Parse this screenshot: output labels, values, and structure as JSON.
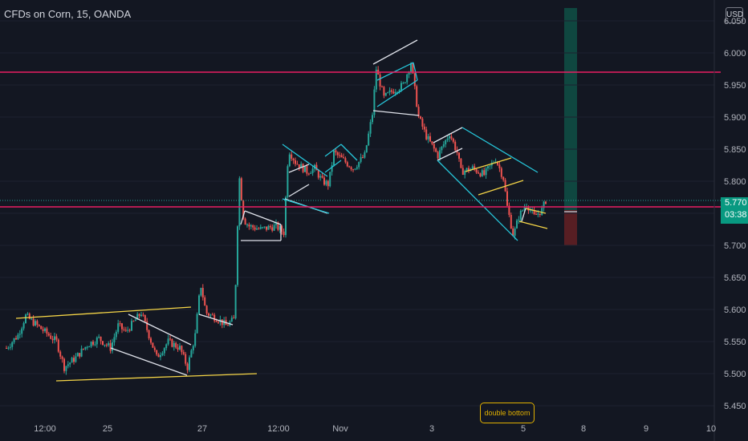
{
  "header": {
    "symbol_label": "CFDs on Corn, 15, OANDA",
    "currency_button": "USD"
  },
  "price_tag": {
    "price": "5.770",
    "countdown": "03:38"
  },
  "annotation": {
    "text": "double bottom"
  },
  "colors": {
    "background": "#131722",
    "up": "#26a69a",
    "down": "#ef5350",
    "resistance": "#e91e63",
    "channel_yellow": "#f5d547",
    "channel_cyan": "#26c6da",
    "flag_white": "#e0e3eb",
    "target_zone": "#0f4d44",
    "stop_zone": "#5b1f24"
  },
  "chart_data": {
    "type": "candlestick",
    "title": "CFDs on Corn, 15, OANDA",
    "y_ticks": [
      "6.050",
      "6.000",
      "5.950",
      "5.900",
      "5.850",
      "5.800",
      "5.750",
      "5.700",
      "5.650",
      "5.600",
      "5.550",
      "5.500",
      "5.450"
    ],
    "ylim": [
      5.45,
      6.06
    ],
    "x_ticks": [
      "12:00",
      "25",
      "27",
      "12:00",
      "Nov",
      "3",
      "5",
      "8",
      "9",
      "10"
    ],
    "last_price": 5.77,
    "horizontal_lines": [
      5.97,
      5.76
    ],
    "path": [
      {
        "t": 0,
        "p": 5.54
      },
      {
        "t": 1.5,
        "p": 5.56
      },
      {
        "t": 2.5,
        "p": 5.59
      },
      {
        "t": 4,
        "p": 5.575
      },
      {
        "t": 6.5,
        "p": 5.55
      },
      {
        "t": 7.5,
        "p": 5.51
      },
      {
        "t": 9,
        "p": 5.525
      },
      {
        "t": 10.5,
        "p": 5.545
      },
      {
        "t": 12,
        "p": 5.555
      },
      {
        "t": 13.5,
        "p": 5.54
      },
      {
        "t": 14.5,
        "p": 5.575
      },
      {
        "t": 15.5,
        "p": 5.565
      },
      {
        "t": 17.5,
        "p": 5.595
      },
      {
        "t": 18.5,
        "p": 5.56
      },
      {
        "t": 19.5,
        "p": 5.525
      },
      {
        "t": 21,
        "p": 5.55
      },
      {
        "t": 22.5,
        "p": 5.54
      },
      {
        "t": 23.5,
        "p": 5.51
      },
      {
        "t": 24.5,
        "p": 5.56
      },
      {
        "t": 25.2,
        "p": 5.64
      },
      {
        "t": 25.9,
        "p": 5.595
      },
      {
        "t": 27.5,
        "p": 5.585
      },
      {
        "t": 28.5,
        "p": 5.575
      },
      {
        "t": 29.6,
        "p": 5.585
      },
      {
        "t": 30.2,
        "p": 5.81
      },
      {
        "t": 30.8,
        "p": 5.74
      },
      {
        "t": 31.5,
        "p": 5.73
      },
      {
        "t": 33,
        "p": 5.725
      },
      {
        "t": 35,
        "p": 5.73
      },
      {
        "t": 36,
        "p": 5.72
      },
      {
        "t": 36.6,
        "p": 5.85
      },
      {
        "t": 37.5,
        "p": 5.83
      },
      {
        "t": 39,
        "p": 5.815
      },
      {
        "t": 40,
        "p": 5.82
      },
      {
        "t": 41,
        "p": 5.8
      },
      {
        "t": 41.8,
        "p": 5.795
      },
      {
        "t": 42.5,
        "p": 5.845
      },
      {
        "t": 43.5,
        "p": 5.835
      },
      {
        "t": 45,
        "p": 5.82
      },
      {
        "t": 46.5,
        "p": 5.84
      },
      {
        "t": 47.5,
        "p": 5.905
      },
      {
        "t": 48,
        "p": 5.975
      },
      {
        "t": 49,
        "p": 5.93
      },
      {
        "t": 50,
        "p": 5.94
      },
      {
        "t": 51.5,
        "p": 5.95
      },
      {
        "t": 52.5,
        "p": 5.985
      },
      {
        "t": 53.5,
        "p": 5.9
      },
      {
        "t": 54.5,
        "p": 5.87
      },
      {
        "t": 56,
        "p": 5.84
      },
      {
        "t": 57.5,
        "p": 5.875
      },
      {
        "t": 58.5,
        "p": 5.845
      },
      {
        "t": 59,
        "p": 5.815
      },
      {
        "t": 60.5,
        "p": 5.82
      },
      {
        "t": 62,
        "p": 5.81
      },
      {
        "t": 63.5,
        "p": 5.835
      },
      {
        "t": 64.5,
        "p": 5.805
      },
      {
        "t": 65,
        "p": 5.76
      },
      {
        "t": 65.8,
        "p": 5.715
      },
      {
        "t": 66.5,
        "p": 5.745
      },
      {
        "t": 67.5,
        "p": 5.765
      },
      {
        "t": 68.5,
        "p": 5.745
      },
      {
        "t": 69.5,
        "p": 5.755
      },
      {
        "t": 70,
        "p": 5.77
      }
    ]
  }
}
